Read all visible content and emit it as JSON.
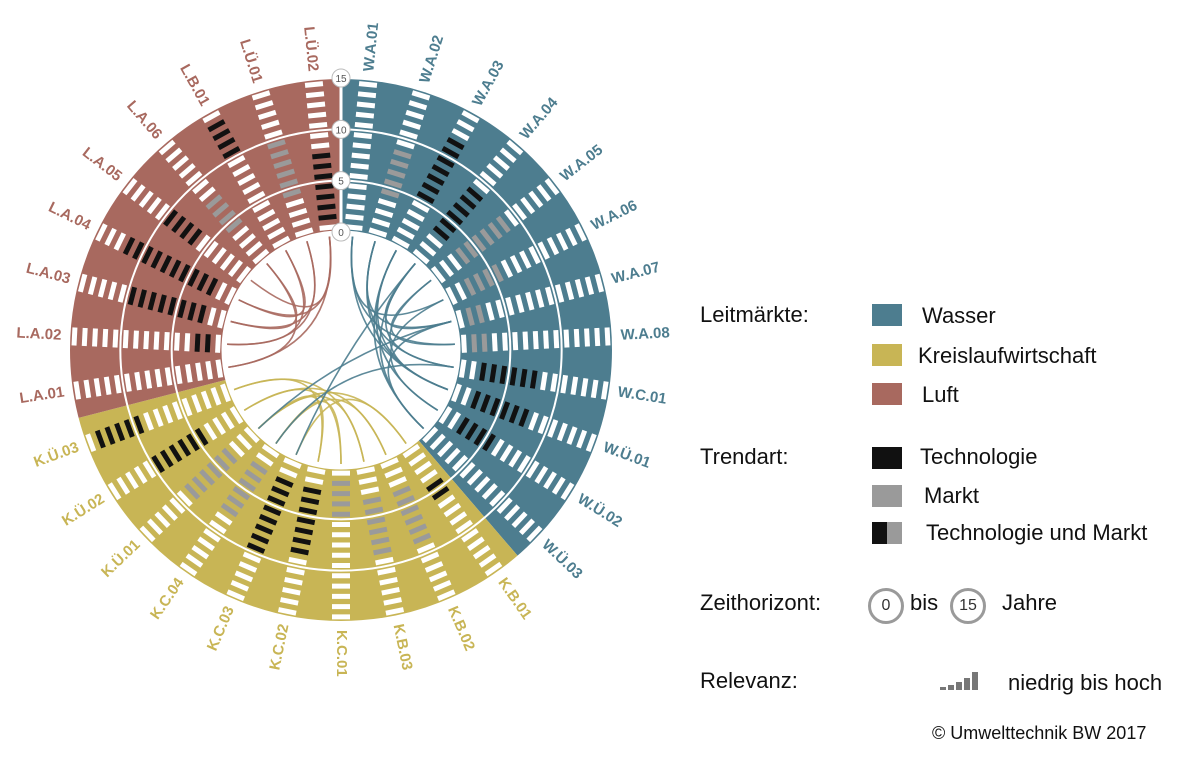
{
  "chart_data": {
    "type": "circular-radar",
    "sectors": [
      {
        "name": "Wasser",
        "color": "#4d7d8f",
        "labels": [
          "W.A.01",
          "W.A.02",
          "W.A.03",
          "W.A.04",
          "W.A.05",
          "W.A.06",
          "W.A.07",
          "W.A.08",
          "W.C.01",
          "W.Ü.01",
          "W.Ü.02",
          "W.Ü.03"
        ]
      },
      {
        "name": "Kreislaufwirtschaft",
        "color": "#c8b555",
        "labels": [
          "K.B.01",
          "K.B.02",
          "K.B.03",
          "K.C.01",
          "K.C.02",
          "K.C.03",
          "K.C.04",
          "K.Ü.01",
          "K.Ü.02",
          "K.Ü.03"
        ]
      },
      {
        "name": "Luft",
        "color": "#a8695f",
        "labels": [
          "L.A.01",
          "L.A.02",
          "L.A.03",
          "L.A.04",
          "L.A.05",
          "L.A.06",
          "L.B.01",
          "L.Ü.01",
          "L.Ü.02"
        ]
      }
    ],
    "rings": [
      0,
      5,
      10,
      15
    ],
    "ring_labels": [
      "0",
      "5",
      "10",
      "15"
    ],
    "trend_colors": {
      "technologie": "#111111",
      "markt": "#9a9a9a",
      "neutral": "#ffffff"
    },
    "trends": [
      {
        "label": "W.A.01",
        "type": "neutral",
        "horizon": []
      },
      {
        "label": "W.A.02",
        "type": "markt",
        "horizon": [
          4,
          9
        ]
      },
      {
        "label": "W.A.03",
        "type": "technologie",
        "horizon": [
          5,
          12
        ]
      },
      {
        "label": "W.A.04",
        "type": "technologie",
        "horizon": [
          3,
          9
        ]
      },
      {
        "label": "W.A.05",
        "type": "markt",
        "horizon": [
          3,
          9
        ]
      },
      {
        "label": "W.A.06",
        "type": "markt",
        "horizon": [
          2,
          6
        ]
      },
      {
        "label": "W.A.07",
        "type": "markt",
        "horizon": [
          1,
          3
        ]
      },
      {
        "label": "W.A.08",
        "type": "markt",
        "horizon": [
          1,
          3
        ]
      },
      {
        "label": "W.C.01",
        "type": "technologie",
        "horizon": [
          2,
          8
        ]
      },
      {
        "label": "W.Ü.01",
        "type": "technologie",
        "horizon": [
          2,
          8
        ]
      },
      {
        "label": "W.Ü.02",
        "type": "technologie",
        "horizon": [
          2,
          6
        ]
      },
      {
        "label": "W.Ü.03",
        "type": "neutral",
        "horizon": []
      },
      {
        "label": "K.B.01",
        "type": "technologie",
        "horizon": [
          4,
          6
        ]
      },
      {
        "label": "K.B.02",
        "type": "markt",
        "horizon": [
          3,
          9
        ]
      },
      {
        "label": "K.B.03",
        "type": "markt",
        "horizon": [
          3,
          9
        ]
      },
      {
        "label": "K.C.01",
        "type": "markt",
        "horizon": [
          1,
          5
        ]
      },
      {
        "label": "K.C.02",
        "type": "technologie",
        "horizon": [
          2,
          9
        ]
      },
      {
        "label": "K.C.03",
        "type": "technologie",
        "horizon": [
          2,
          10
        ]
      },
      {
        "label": "K.C.04",
        "type": "markt",
        "horizon": [
          2,
          8
        ]
      },
      {
        "label": "K.Ü.01",
        "type": "markt",
        "horizon": [
          3,
          9
        ]
      },
      {
        "label": "K.Ü.02",
        "type": "technologie",
        "horizon": [
          4,
          10
        ]
      },
      {
        "label": "K.Ü.03",
        "type": "technologie",
        "horizon": [
          9,
          14
        ]
      },
      {
        "label": "L.A.01",
        "type": "neutral",
        "horizon": []
      },
      {
        "label": "L.A.02",
        "type": "technologie",
        "horizon": [
          1,
          3
        ]
      },
      {
        "label": "L.A.03",
        "type": "technologie",
        "horizon": [
          2,
          10
        ]
      },
      {
        "label": "L.A.04",
        "type": "technologie",
        "horizon": [
          2,
          12
        ]
      },
      {
        "label": "L.A.05",
        "type": "technologie",
        "horizon": [
          6,
          10
        ]
      },
      {
        "label": "L.A.06",
        "type": "markt",
        "horizon": [
          4,
          8
        ]
      },
      {
        "label": "L.B.01",
        "type": "technologie",
        "horizon": [
          10,
          14
        ]
      },
      {
        "label": "L.Ü.01",
        "type": "markt",
        "horizon": [
          4,
          10
        ]
      },
      {
        "label": "L.Ü.02",
        "type": "technologie",
        "horizon": [
          1,
          8
        ]
      }
    ],
    "links": [
      [
        0,
        5
      ],
      [
        0,
        7
      ],
      [
        1,
        6
      ],
      [
        1,
        8
      ],
      [
        2,
        9
      ],
      [
        2,
        10
      ],
      [
        3,
        8
      ],
      [
        3,
        11
      ],
      [
        4,
        9
      ],
      [
        5,
        10
      ],
      [
        6,
        11
      ],
      [
        1,
        9
      ],
      [
        0,
        9
      ],
      [
        2,
        11
      ],
      [
        4,
        7
      ],
      [
        3,
        6
      ],
      [
        13,
        18
      ],
      [
        14,
        19
      ],
      [
        15,
        20
      ],
      [
        16,
        21
      ],
      [
        12,
        17
      ],
      [
        13,
        20
      ],
      [
        14,
        21
      ],
      [
        12,
        19
      ],
      [
        15,
        18
      ],
      [
        16,
        19
      ],
      [
        22,
        27
      ],
      [
        23,
        28
      ],
      [
        24,
        29
      ],
      [
        25,
        30
      ],
      [
        22,
        30
      ],
      [
        23,
        29
      ],
      [
        24,
        27
      ],
      [
        26,
        30
      ],
      [
        25,
        28
      ],
      [
        3,
        17
      ],
      [
        6,
        19
      ],
      [
        8,
        18
      ]
    ]
  },
  "legend": {
    "leitmaerkte_heading": "Leitmärkte:",
    "leitmaerkte": [
      {
        "label": "Wasser",
        "color": "#4d7d8f"
      },
      {
        "label": "Kreislaufwirtschaft",
        "color": "#c8b555"
      },
      {
        "label": "Luft",
        "color": "#a8695f"
      }
    ],
    "trendart_heading": "Trendart:",
    "trendart": [
      {
        "label": "Technologie",
        "color": "#111111"
      },
      {
        "label": "Markt",
        "color": "#9a9a9a"
      },
      {
        "label": "Technologie und Markt"
      }
    ],
    "zeithorizont_heading": "Zeithorizont:",
    "zeithorizont_start": "0",
    "zeithorizont_bis": "bis",
    "zeithorizont_end": "15",
    "zeithorizont_unit": "Jahre",
    "relevanz_heading": "Relevanz:",
    "relevanz_text": "niedrig bis hoch"
  },
  "copyright": "© Umwelttechnik BW 2017"
}
